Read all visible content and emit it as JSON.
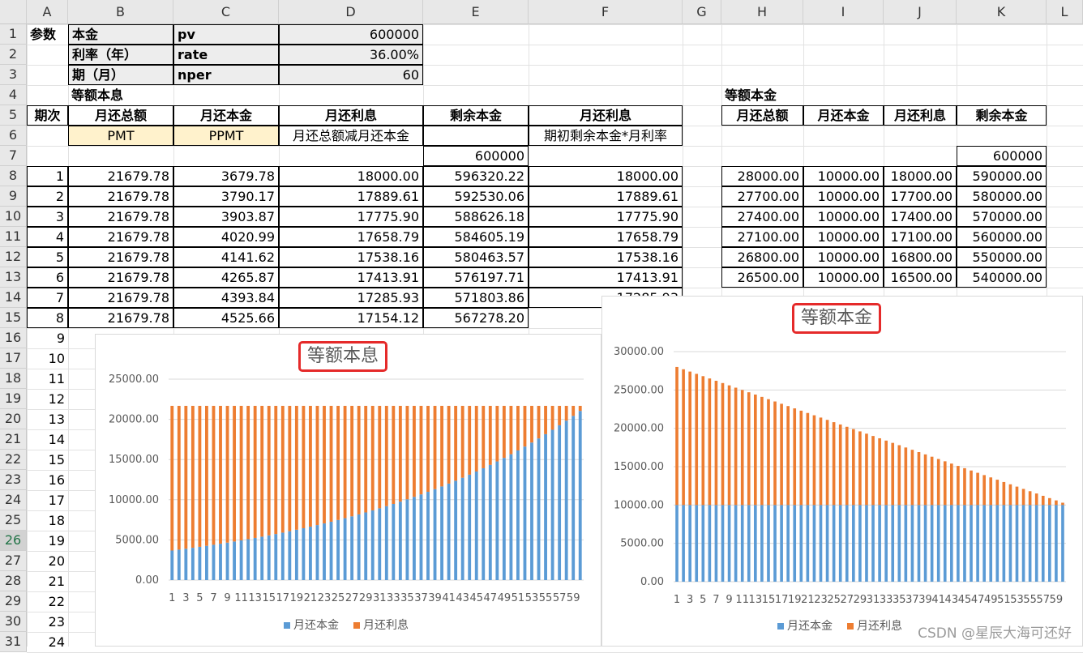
{
  "columns": [
    "A",
    "B",
    "C",
    "D",
    "E",
    "F",
    "G",
    "H",
    "I",
    "J",
    "K",
    "L"
  ],
  "rows": [
    "1",
    "2",
    "3",
    "4",
    "5",
    "6",
    "7",
    "8",
    "9",
    "10",
    "11",
    "12",
    "13",
    "14",
    "15",
    "16",
    "17",
    "18",
    "19",
    "20",
    "21",
    "22",
    "23",
    "24",
    "25",
    "26",
    "27",
    "28",
    "29",
    "30",
    "31"
  ],
  "params": {
    "label": "参数",
    "r1": [
      "本金",
      "pv",
      "600000"
    ],
    "r2": [
      "利率（年）",
      "rate",
      "36.00%"
    ],
    "r3": [
      "期（月）",
      "nper",
      "60"
    ]
  },
  "left_table": {
    "title": "等额本息",
    "headers": [
      "期次",
      "月还总额",
      "月还本金",
      "月还利息",
      "剩余本金",
      "月还利息"
    ],
    "formulas": [
      "",
      "PMT",
      "PPMT",
      "月还总额减月还本金",
      "",
      "期初剩余本金*月利率"
    ],
    "init_remaining": "600000",
    "rows": [
      [
        "1",
        "21679.78",
        "3679.78",
        "18000.00",
        "596320.22",
        "18000.00"
      ],
      [
        "2",
        "21679.78",
        "3790.17",
        "17889.61",
        "592530.06",
        "17889.61"
      ],
      [
        "3",
        "21679.78",
        "3903.87",
        "17775.90",
        "588626.18",
        "17775.90"
      ],
      [
        "4",
        "21679.78",
        "4020.99",
        "17658.79",
        "584605.19",
        "17658.79"
      ],
      [
        "5",
        "21679.78",
        "4141.62",
        "17538.16",
        "580463.57",
        "17538.16"
      ],
      [
        "6",
        "21679.78",
        "4265.87",
        "17413.91",
        "576197.71",
        "17413.91"
      ],
      [
        "7",
        "21679.78",
        "4393.84",
        "17285.93",
        "571803.86",
        "17285.93"
      ],
      [
        "8",
        "21679.78",
        "4525.66",
        "17154.12",
        "567278.20",
        ""
      ]
    ],
    "period_numbers": [
      "9",
      "10",
      "11",
      "12",
      "13",
      "14",
      "15",
      "16",
      "17",
      "18",
      "19",
      "20",
      "21",
      "22",
      "23",
      "24"
    ]
  },
  "right_table": {
    "title": "等额本金",
    "headers": [
      "月还总额",
      "月还本金",
      "月还利息",
      "剩余本金"
    ],
    "init_remaining": "600000",
    "rows": [
      [
        "28000.00",
        "10000.00",
        "18000.00",
        "590000.00"
      ],
      [
        "27700.00",
        "10000.00",
        "17700.00",
        "580000.00"
      ],
      [
        "27400.00",
        "10000.00",
        "17400.00",
        "570000.00"
      ],
      [
        "27100.00",
        "10000.00",
        "17100.00",
        "560000.00"
      ],
      [
        "26800.00",
        "10000.00",
        "16800.00",
        "550000.00"
      ],
      [
        "26500.00",
        "10000.00",
        "16500.00",
        "540000.00"
      ]
    ]
  },
  "colors": {
    "principal": "#5b9bd5",
    "interest": "#ed7d31",
    "title_box": "#e52a2a"
  },
  "chart_data": [
    {
      "type": "bar",
      "stacked": true,
      "title": "等额本息",
      "categories_count": 60,
      "x_tick_labels": [
        "1",
        "3",
        "5",
        "7",
        "9",
        "11",
        "13",
        "15",
        "17",
        "19",
        "21",
        "23",
        "25",
        "27",
        "29",
        "31",
        "33",
        "35",
        "37",
        "39",
        "41",
        "43",
        "45",
        "47",
        "49",
        "51",
        "53",
        "55",
        "57",
        "59"
      ],
      "ylim": [
        0,
        25000
      ],
      "y_ticks": [
        "0.00",
        "5000.00",
        "10000.00",
        "15000.00",
        "20000.00",
        "25000.00"
      ],
      "series": [
        {
          "name": "月还本金",
          "values": "PPMT(600000, 3% monthly, 60) from 3679.78 to 21048.33"
        },
        {
          "name": "月还利息",
          "values": "21679.78 minus principal"
        }
      ],
      "legend": "bottom"
    },
    {
      "type": "bar",
      "stacked": true,
      "title": "等额本金",
      "categories_count": 60,
      "x_tick_labels": [
        "1",
        "3",
        "5",
        "7",
        "9",
        "11",
        "13",
        "15",
        "17",
        "19",
        "21",
        "23",
        "25",
        "27",
        "29",
        "31",
        "33",
        "35",
        "37",
        "39",
        "41",
        "43",
        "45",
        "47",
        "49",
        "51",
        "53",
        "55",
        "57",
        "59"
      ],
      "ylim": [
        0,
        30000
      ],
      "y_ticks": [
        "0.00",
        "5000.00",
        "10000.00",
        "15000.00",
        "20000.00",
        "25000.00",
        "30000.00"
      ],
      "series": [
        {
          "name": "月还本金",
          "values": "10000 each period"
        },
        {
          "name": "月还利息",
          "values": "18000 decreasing by 300 each period to 300"
        }
      ],
      "legend": "bottom"
    }
  ],
  "watermark": "CSDN @星辰大海可还好"
}
